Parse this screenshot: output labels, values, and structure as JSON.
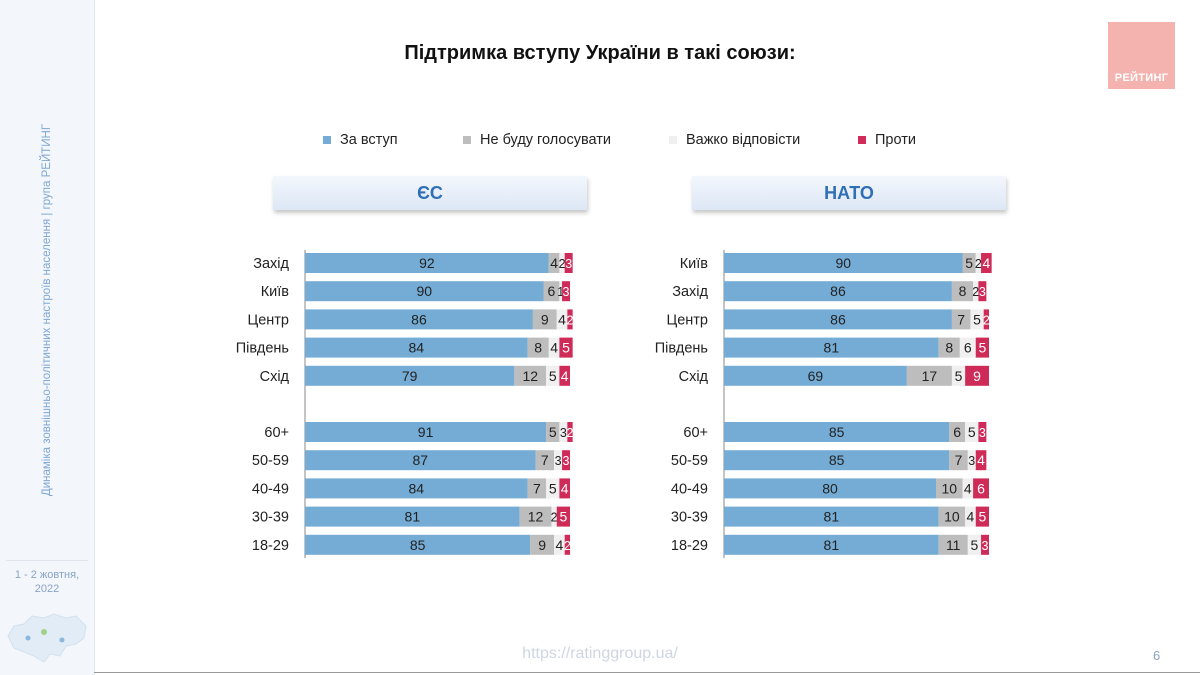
{
  "sidebar": {
    "vertical_text": "Динаміка зовнішньо-політичних настроїв населення | група РЕЙТИНГ",
    "date": "1 - 2 жовтня,",
    "year": "2022"
  },
  "logo": {
    "text": "РЕЙТИНГ",
    "color": "#f5b3b0"
  },
  "footer": {
    "url": "https://ratinggroup.ua/",
    "page_number": "6"
  },
  "colors": {
    "for": "#74acd5",
    "wont_vote": "#bdbdbd",
    "hard_to_say": "#f0f0f0",
    "against": "#cf2b58"
  },
  "chart_data": {
    "type": "bar",
    "orientation": "horizontal",
    "stacked": true,
    "title": "Підтримка вступу України в такі союзи:",
    "legend": {
      "placement": "top",
      "entries": [
        "За вступ",
        "Не буду голосувати",
        "Важко відповісти",
        "Проти"
      ]
    },
    "panels": [
      {
        "header": "ЄС",
        "groups": [
          {
            "categories": [
              "Захід",
              "Київ",
              "Центр",
              "Південь",
              "Схід"
            ],
            "series": [
              {
                "name": "За вступ",
                "values": [
                  92,
                  90,
                  86,
                  84,
                  79
                ]
              },
              {
                "name": "Не буду голосувати",
                "values": [
                  4,
                  6,
                  9,
                  8,
                  12
                ]
              },
              {
                "name": "Важко відповісти",
                "values": [
                  2,
                  1,
                  4,
                  4,
                  5
                ]
              },
              {
                "name": "Проти",
                "values": [
                  3,
                  3,
                  2,
                  5,
                  4
                ]
              }
            ]
          },
          {
            "categories": [
              "60+",
              "50-59",
              "40-49",
              "30-39",
              "18-29"
            ],
            "series": [
              {
                "name": "За вступ",
                "values": [
                  91,
                  87,
                  84,
                  81,
                  85
                ]
              },
              {
                "name": "Не буду голосувати",
                "values": [
                  5,
                  7,
                  7,
                  12,
                  9
                ]
              },
              {
                "name": "Важко відповісти",
                "values": [
                  3,
                  3,
                  5,
                  2,
                  4
                ]
              },
              {
                "name": "Проти",
                "values": [
                  2,
                  3,
                  4,
                  5,
                  2
                ]
              }
            ]
          }
        ]
      },
      {
        "header": "НАТО",
        "groups": [
          {
            "categories": [
              "Київ",
              "Захід",
              "Центр",
              "Південь",
              "Схід"
            ],
            "series": [
              {
                "name": "За вступ",
                "values": [
                  90,
                  86,
                  86,
                  81,
                  69
                ]
              },
              {
                "name": "Не буду голосувати",
                "values": [
                  5,
                  8,
                  7,
                  8,
                  17
                ]
              },
              {
                "name": "Важко відповісти",
                "values": [
                  2,
                  2,
                  5,
                  6,
                  5
                ]
              },
              {
                "name": "Проти",
                "values": [
                  4,
                  3,
                  2,
                  5,
                  9
                ]
              }
            ]
          },
          {
            "categories": [
              "60+",
              "50-59",
              "40-49",
              "30-39",
              "18-29"
            ],
            "series": [
              {
                "name": "За вступ",
                "values": [
                  85,
                  85,
                  80,
                  81,
                  81
                ]
              },
              {
                "name": "Не буду голосувати",
                "values": [
                  6,
                  7,
                  10,
                  10,
                  11
                ]
              },
              {
                "name": "Важко відповісти",
                "values": [
                  5,
                  3,
                  4,
                  4,
                  5
                ]
              },
              {
                "name": "Проти",
                "values": [
                  3,
                  4,
                  6,
                  5,
                  3
                ]
              }
            ]
          }
        ]
      }
    ]
  }
}
